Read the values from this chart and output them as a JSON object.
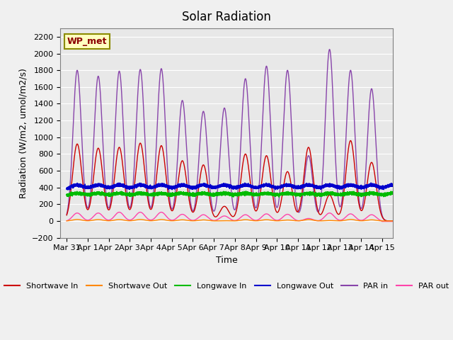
{
  "title": "Solar Radiation",
  "ylabel": "Radiation (W/m2, umol/m2/s)",
  "xlabel": "Time",
  "xlim_days": 15.5,
  "ylim": [
    -200,
    2300
  ],
  "yticks": [
    -200,
    0,
    200,
    400,
    600,
    800,
    1000,
    1200,
    1400,
    1600,
    1800,
    2000,
    2200
  ],
  "xtick_labels": [
    "Mar 31",
    "Apr 1",
    "Apr 2",
    "Apr 3",
    "Apr 4",
    "Apr 5",
    "Apr 6",
    "Apr 7",
    "Apr 8",
    "Apr 9",
    "Apr 10",
    "Apr 11",
    "Apr 12",
    "Apr 13",
    "Apr 14",
    "Apr 15"
  ],
  "xtick_positions": [
    0,
    1,
    2,
    3,
    4,
    5,
    6,
    7,
    8,
    9,
    10,
    11,
    12,
    13,
    14,
    15
  ],
  "colors": {
    "shortwave_in": "#CC0000",
    "shortwave_out": "#FF8800",
    "longwave_in": "#00BB00",
    "longwave_out": "#0000CC",
    "par_in": "#8844AA",
    "par_out": "#FF44AA"
  },
  "legend_labels": [
    "Shortwave In",
    "Shortwave Out",
    "Longwave In",
    "Longwave Out",
    "PAR in",
    "PAR out"
  ],
  "station_label": "WP_met",
  "bg_color": "#E8E8E8",
  "plot_bg_color": "#E8E8E8"
}
